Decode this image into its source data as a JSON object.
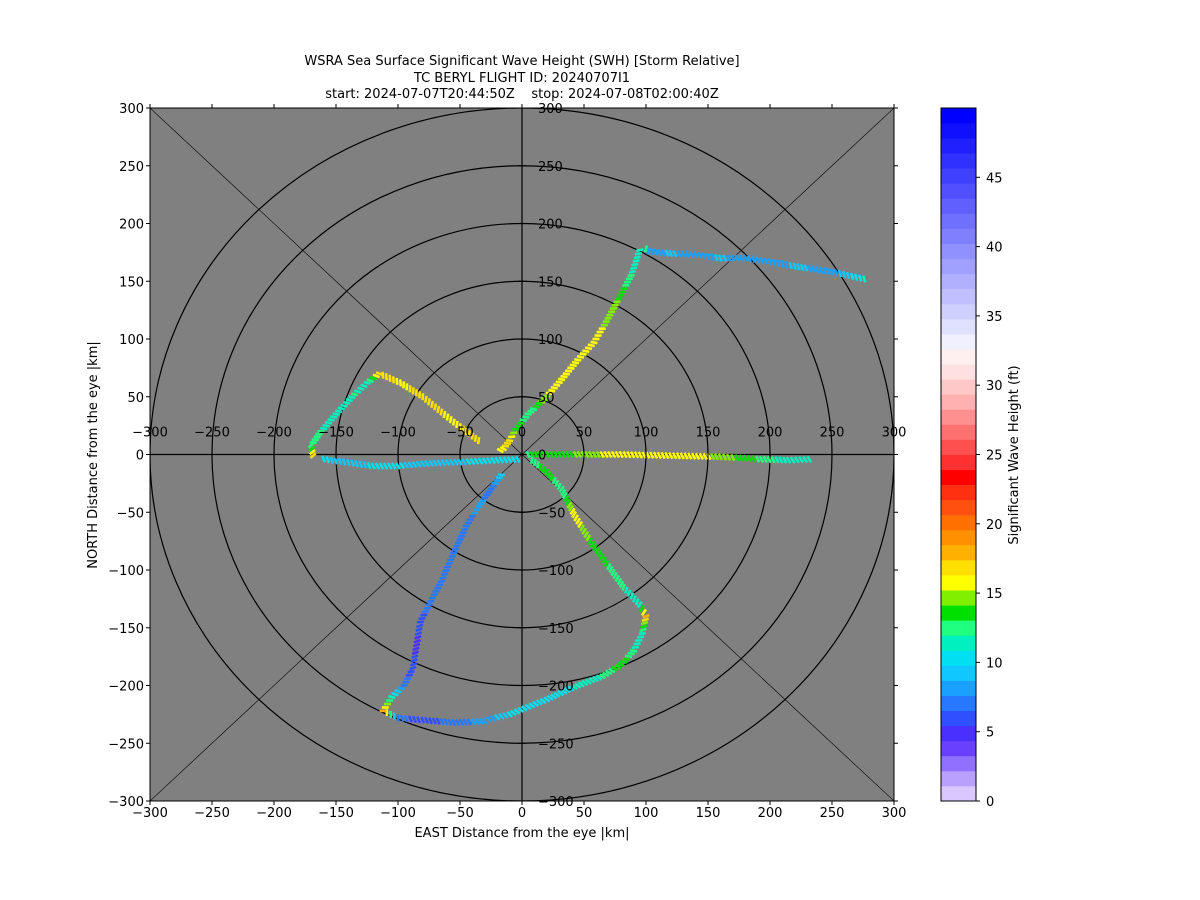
{
  "figure": {
    "title_line1": "WSRA Sea Surface Significant Wave Height (SWH) [Storm Relative]",
    "title_line2": "TC BERYL FLIGHT ID: 20240707I1",
    "title_line3": "start: 2024-07-07T20:44:50Z    stop: 2024-07-08T02:00:40Z"
  },
  "chart_data": {
    "type": "scatter",
    "title": "WSRA Sea Surface Significant Wave Height (SWH) [Storm Relative]",
    "xlabel": "EAST Distance from the eye |km|",
    "ylabel": "NORTH Distance from the eye |km|",
    "xlim": [
      -300,
      300
    ],
    "ylim": [
      -300,
      300
    ],
    "xticks": [
      -300,
      -250,
      -200,
      -150,
      -100,
      -50,
      0,
      50,
      100,
      150,
      200,
      250,
      300
    ],
    "yticks": [
      -300,
      -250,
      -200,
      -150,
      -100,
      -50,
      0,
      50,
      100,
      150,
      200,
      250,
      300
    ],
    "range_rings_km": [
      50,
      100,
      150,
      200,
      250,
      300
    ],
    "background_color": "#808080",
    "colorbar": {
      "label": "Significant Wave Height (ft)",
      "ticks": [
        0,
        5,
        10,
        15,
        20,
        25,
        30,
        35,
        40,
        45
      ],
      "range": [
        0,
        50
      ],
      "colors": [
        "#d8c8ff",
        "#b8a0ff",
        "#9070ff",
        "#6a40ff",
        "#4a30ff",
        "#3050ff",
        "#2878ff",
        "#1aa0ff",
        "#10c8ff",
        "#00e0f0",
        "#00f0c0",
        "#20ff80",
        "#00e000",
        "#80f000",
        "#ffff00",
        "#ffe000",
        "#ffb000",
        "#ff9000",
        "#ff7000",
        "#ff5010",
        "#ff3010",
        "#ff0000",
        "#ff3030",
        "#ff5050",
        "#ff7070",
        "#ff9090",
        "#ffb0b0",
        "#ffc8c8",
        "#ffe0e0",
        "#fff0f0",
        "#f0f0ff",
        "#e0e0ff",
        "#d0d0ff",
        "#c0c0ff",
        "#b0b0ff",
        "#a0a0ff",
        "#9090ff",
        "#8080ff",
        "#7070ff",
        "#6060ff",
        "#5050ff",
        "#4040ff",
        "#3030ff",
        "#2020ff",
        "#1010ff",
        "#0000ff"
      ]
    },
    "series": [
      {
        "points": [
          [
            276,
            152
          ],
          [
            250,
            158
          ],
          [
            220,
            163
          ],
          [
            200,
            167
          ],
          [
            180,
            170
          ],
          [
            160,
            170
          ],
          [
            140,
            173
          ],
          [
            120,
            174
          ],
          [
            102,
            176
          ],
          [
            98,
            180
          ]
        ],
        "swh_ft": [
          11,
          8,
          9,
          8,
          8,
          9,
          8,
          9,
          8,
          18
        ]
      },
      {
        "points": [
          [
            95,
            177
          ],
          [
            88,
            155
          ],
          [
            78,
            135
          ],
          [
            68,
            115
          ],
          [
            58,
            97
          ],
          [
            45,
            82
          ],
          [
            32,
            65
          ],
          [
            18,
            48
          ],
          [
            5,
            35
          ],
          [
            -5,
            22
          ],
          [
            -10,
            12
          ],
          [
            -15,
            5
          ],
          [
            -20,
            2
          ]
        ],
        "swh_ft": [
          11,
          12,
          14,
          15,
          16,
          16,
          16,
          15,
          12,
          14,
          17,
          16,
          15
        ]
      },
      {
        "points": [
          [
            -35,
            12
          ],
          [
            -55,
            28
          ],
          [
            -80,
            50
          ],
          [
            -98,
            62
          ],
          [
            -115,
            70
          ],
          [
            -125,
            62
          ],
          [
            -135,
            52
          ],
          [
            -150,
            35
          ],
          [
            -162,
            20
          ],
          [
            -170,
            8
          ],
          [
            -168,
            -4
          ]
        ],
        "swh_ft": [
          17,
          16,
          17,
          16,
          17,
          11,
          12,
          11,
          12,
          12,
          19
        ]
      },
      {
        "points": [
          [
            -160,
            -4
          ],
          [
            -140,
            -7
          ],
          [
            -120,
            -10
          ],
          [
            -100,
            -10
          ],
          [
            -80,
            -8
          ],
          [
            -60,
            -7
          ],
          [
            -40,
            -6
          ],
          [
            -20,
            -5
          ],
          [
            0,
            -4
          ]
        ],
        "swh_ft": [
          10,
          9,
          10,
          10,
          9,
          9,
          10,
          10,
          11
        ]
      },
      {
        "points": [
          [
            5,
            0
          ],
          [
            40,
            0
          ],
          [
            80,
            0
          ],
          [
            120,
            -1
          ],
          [
            160,
            -2
          ],
          [
            190,
            -4
          ],
          [
            215,
            -5
          ],
          [
            235,
            -4
          ]
        ],
        "swh_ft": [
          13,
          14,
          16,
          16,
          15,
          13,
          11,
          11
        ]
      },
      {
        "points": [
          [
            8,
            -5
          ],
          [
            20,
            -15
          ],
          [
            32,
            -30
          ],
          [
            42,
            -52
          ],
          [
            55,
            -75
          ],
          [
            70,
            -97
          ],
          [
            82,
            -115
          ],
          [
            95,
            -130
          ],
          [
            100,
            -140
          ],
          [
            97,
            -155
          ],
          [
            90,
            -170
          ],
          [
            80,
            -182
          ],
          [
            65,
            -192
          ],
          [
            45,
            -200
          ],
          [
            20,
            -212
          ],
          [
            -10,
            -225
          ],
          [
            -30,
            -230
          ]
        ],
        "swh_ft": [
          12,
          14,
          12,
          16,
          14,
          13,
          12,
          11,
          18,
          11,
          12,
          14,
          12,
          11,
          10,
          10,
          8
        ]
      },
      {
        "points": [
          [
            -30,
            -231
          ],
          [
            -55,
            -232
          ],
          [
            -80,
            -230
          ],
          [
            -100,
            -228
          ],
          [
            -112,
            -222
          ],
          [
            -105,
            -210
          ],
          [
            -95,
            -200
          ],
          [
            -88,
            -185
          ],
          [
            -85,
            -165
          ],
          [
            -82,
            -145
          ],
          [
            -75,
            -130
          ],
          [
            -65,
            -110
          ],
          [
            -55,
            -85
          ],
          [
            -45,
            -62
          ],
          [
            -35,
            -45
          ],
          [
            -25,
            -30
          ],
          [
            -15,
            -15
          ]
        ],
        "swh_ft": [
          8,
          7,
          6,
          7,
          18,
          11,
          7,
          6,
          5,
          6,
          7,
          7,
          7,
          7,
          8,
          7,
          10
        ]
      }
    ]
  }
}
